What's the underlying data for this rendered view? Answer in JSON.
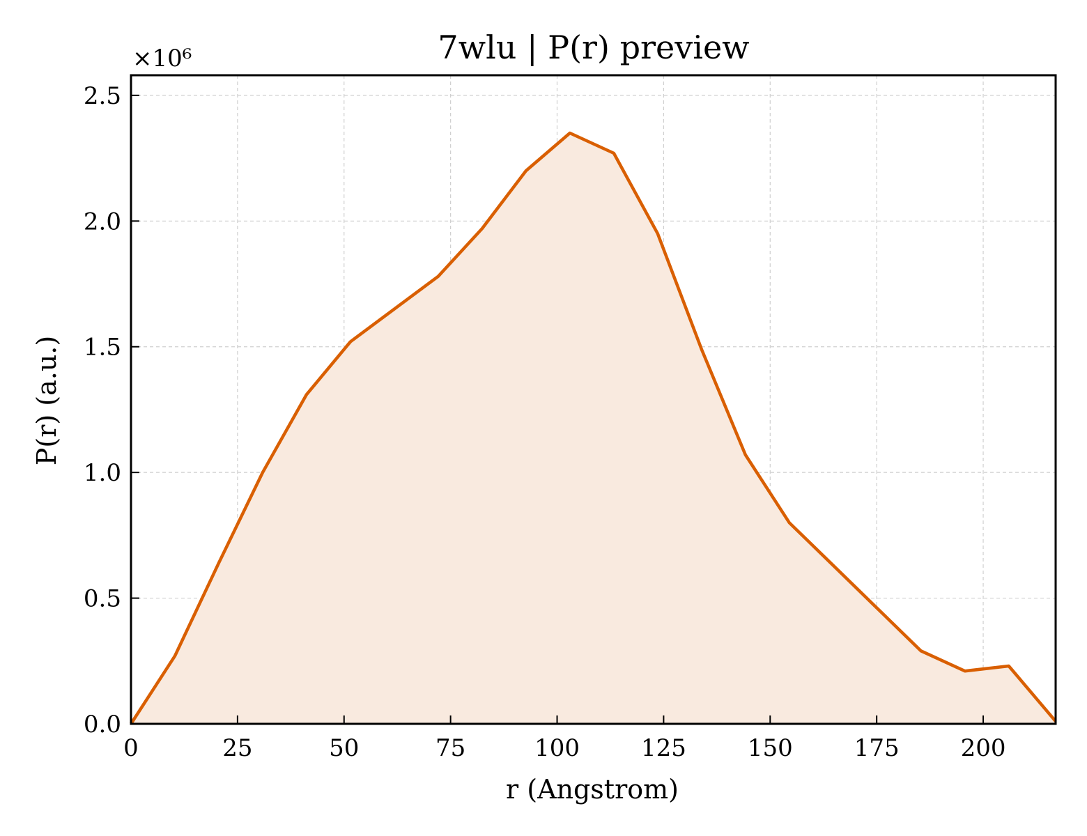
{
  "chart_data": {
    "type": "area",
    "title": "7wlu | P(r) preview",
    "xlabel": "r (Angstrom)",
    "ylabel": "P(r) (a.u.)",
    "y_multiplier_label": "×10⁶",
    "xlim": [
      0,
      217
    ],
    "ylim": [
      0,
      2.58
    ],
    "x_ticks": [
      0,
      25,
      50,
      75,
      100,
      125,
      150,
      175,
      200
    ],
    "x_tick_labels": [
      "0",
      "25",
      "50",
      "75",
      "100",
      "125",
      "150",
      "175",
      "200"
    ],
    "y_ticks": [
      0,
      0.5,
      1.0,
      1.5,
      2.0,
      2.5
    ],
    "y_tick_labels": [
      "0.0",
      "0.5",
      "1.0",
      "1.5",
      "2.0",
      "2.5"
    ],
    "grid": true,
    "colors": {
      "line": "#d95f02",
      "fill": "#f9eadf"
    },
    "series": [
      {
        "x": [
          0,
          10.3,
          20.6,
          30.9,
          41.2,
          51.5,
          61.8,
          72.1,
          82.4,
          92.7,
          103.0,
          113.3,
          123.6,
          133.9,
          144.2,
          154.5,
          164.8,
          175.1,
          185.4,
          195.7,
          206.0,
          217.0
        ],
        "y": [
          0.0,
          0.27,
          0.64,
          1.0,
          1.31,
          1.52,
          1.65,
          1.78,
          1.97,
          2.2,
          2.35,
          2.27,
          1.95,
          1.49,
          1.07,
          0.8,
          0.63,
          0.46,
          0.29,
          0.21,
          0.23,
          0.01
        ]
      }
    ]
  }
}
